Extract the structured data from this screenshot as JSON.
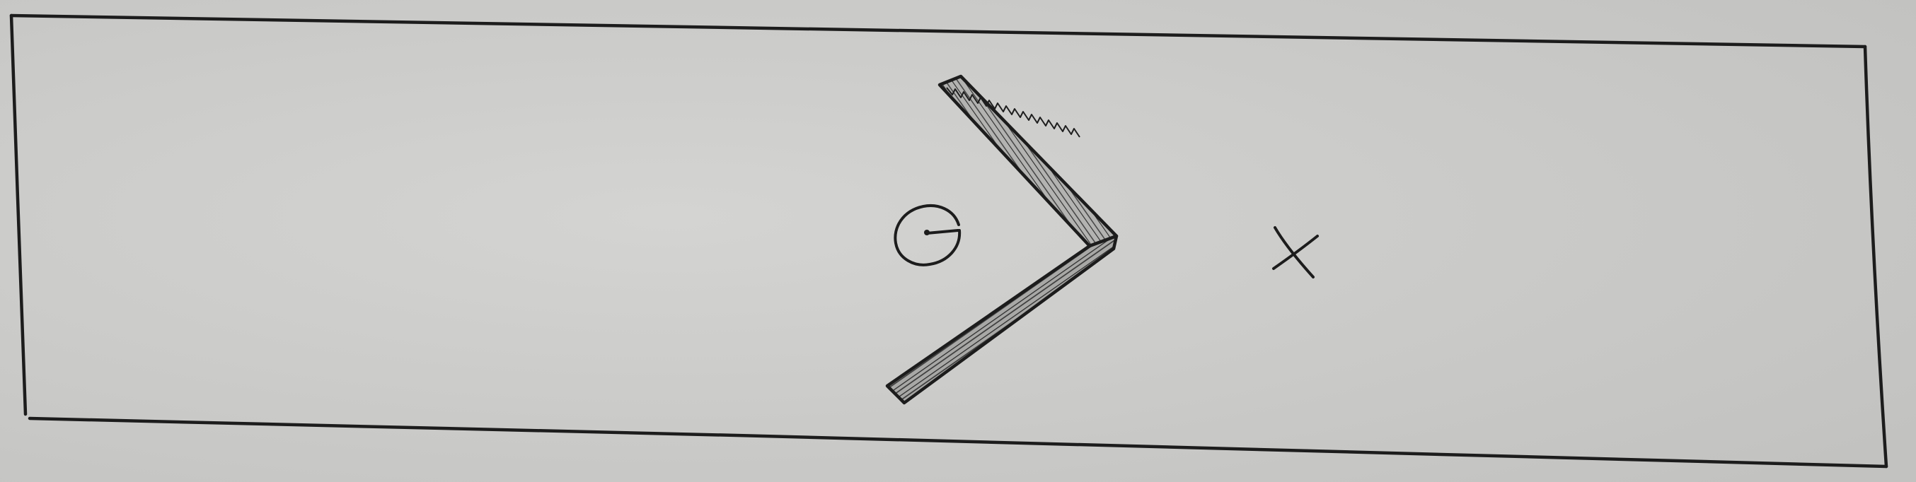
{
  "diagram": {
    "kind": "hand-drawn sketch",
    "colors": {
      "paper": "#c9c9c7",
      "paper_light": "#d3d3d1",
      "ink": "#1c1c1c",
      "hatch_fill": "#a9a9a7"
    },
    "elements": [
      {
        "name": "frame-rectangle",
        "type": "rectangle"
      },
      {
        "name": "chevron-wall",
        "type": "v-shaped hatched wall",
        "opening": "left"
      },
      {
        "name": "player-circle",
        "type": "circle with radius line"
      },
      {
        "name": "target-x-mark",
        "type": "x mark"
      }
    ]
  }
}
